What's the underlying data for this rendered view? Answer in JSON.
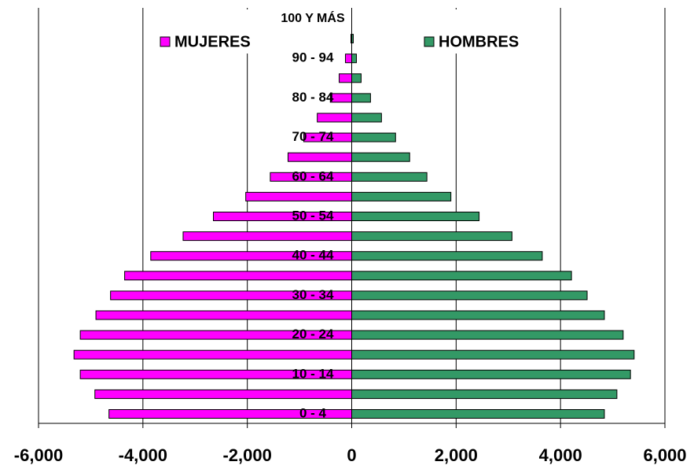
{
  "chart_data": {
    "type": "bar",
    "orientation": "horizontal",
    "stacked": false,
    "categories": [
      "0 - 4",
      null,
      "10 - 14",
      null,
      "20 - 24",
      null,
      "30 - 34",
      null,
      "40 - 44",
      null,
      "50 - 54",
      null,
      "60 - 64",
      null,
      "70 - 74",
      null,
      "80 - 84",
      null,
      "90 - 94",
      null,
      "100 Y MÁS"
    ],
    "series": [
      {
        "name": "MUJERES",
        "color": "#ff00ff",
        "values": [
          -4650,
          -4920,
          -5200,
          -5320,
          -5200,
          -4900,
          -4620,
          -4350,
          -3850,
          -3230,
          -2650,
          -2030,
          -1560,
          -1220,
          -920,
          -660,
          -410,
          -240,
          -120,
          -15,
          0
        ]
      },
      {
        "name": "HOMBRES",
        "color": "#339966",
        "values": [
          4840,
          5080,
          5340,
          5410,
          5200,
          4840,
          4510,
          4210,
          3650,
          3070,
          2440,
          1900,
          1440,
          1110,
          840,
          570,
          360,
          180,
          90,
          30,
          0
        ]
      }
    ],
    "xlim": [
      -6000,
      6000
    ],
    "xticks": [
      {
        "value": -6000,
        "label": "-6,000"
      },
      {
        "value": -4000,
        "label": "-4,000"
      },
      {
        "value": -2000,
        "label": "-2,000"
      },
      0,
      {
        "value": 2000,
        "label": "2,000"
      },
      {
        "value": 4000,
        "label": "4,000"
      },
      {
        "value": 6000,
        "label": "6,000"
      }
    ],
    "grid": true,
    "legend": "top"
  }
}
